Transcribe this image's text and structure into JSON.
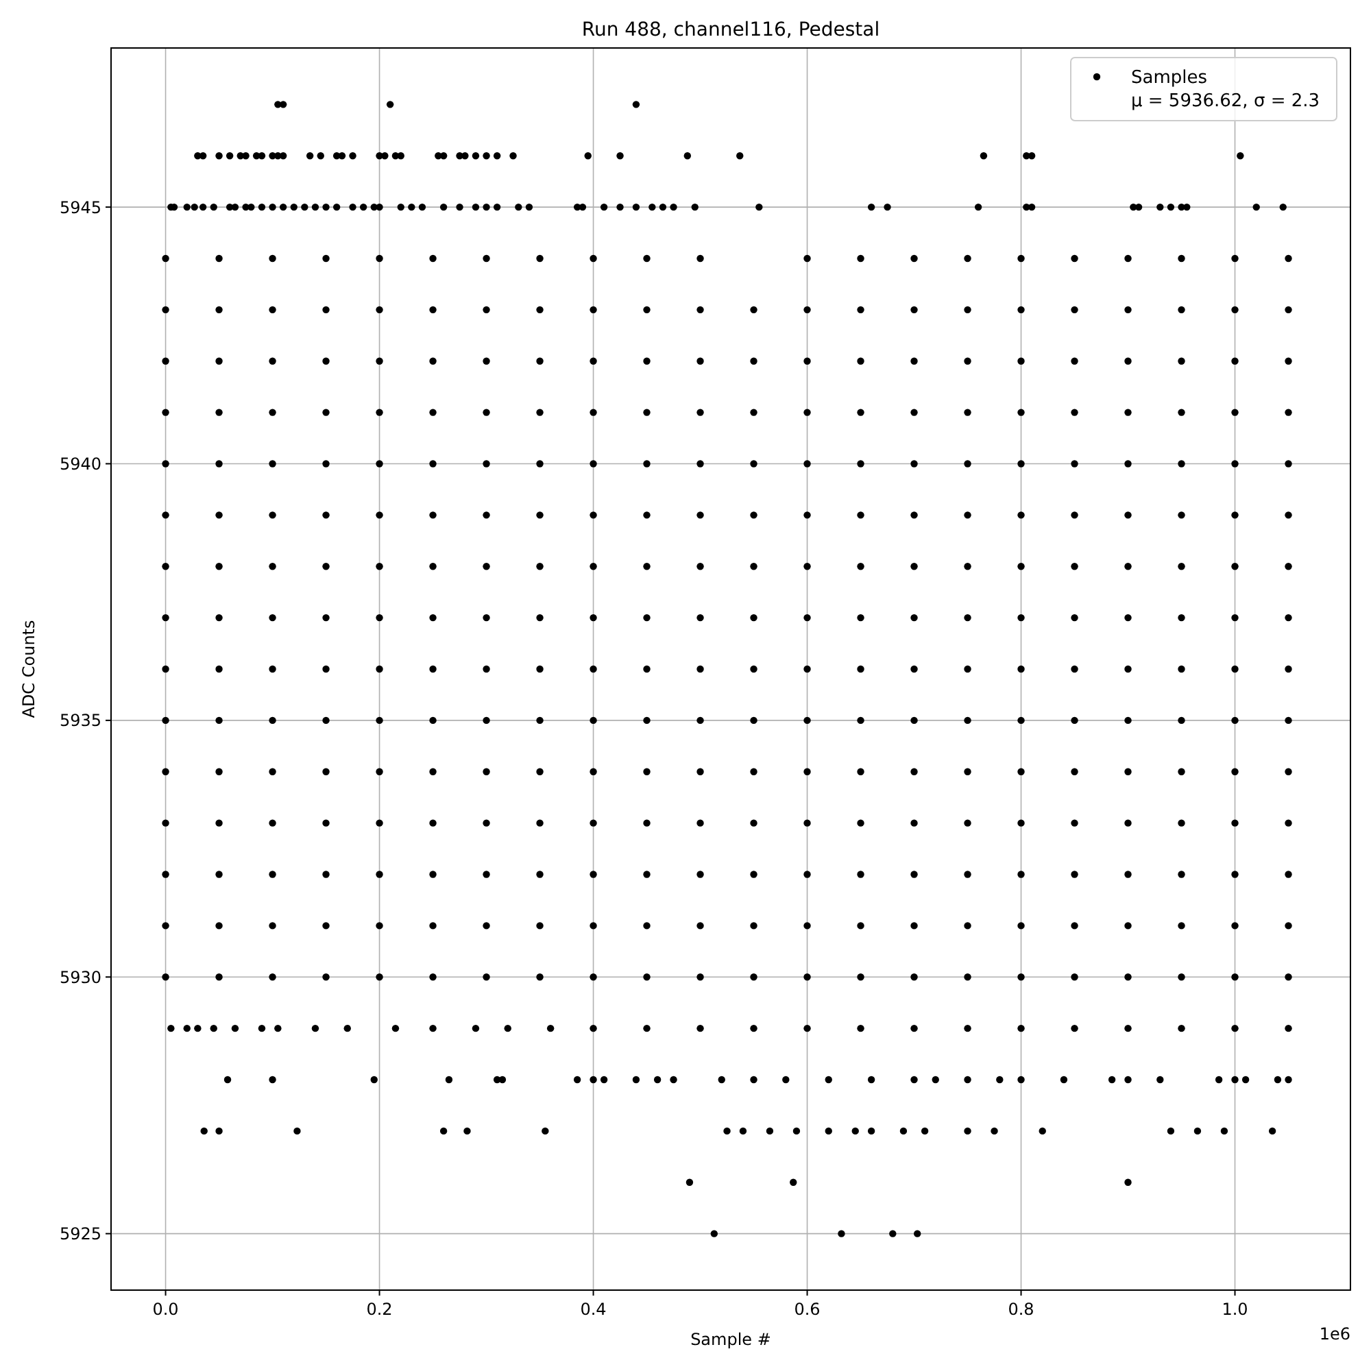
{
  "chart_data": {
    "type": "scatter",
    "title": "Run 488, channel116, Pedestal",
    "xlabel": "Sample #",
    "ylabel": "ADC Counts",
    "annotations": [
      "1e6"
    ],
    "x": [
      0,
      0.05,
      0.1,
      0.15,
      0.2,
      0.25,
      0.3,
      0.35,
      0.4,
      0.45,
      0.5,
      0.55,
      0.6,
      0.65,
      0.7,
      0.75,
      0.8,
      0.85,
      0.9,
      0.95,
      1.0,
      1.05
    ],
    "xlim": [
      -0.051,
      1.108
    ],
    "ylim": [
      5923.9,
      5948.1
    ],
    "xticks": [
      {
        "value": 0,
        "label": "0.0"
      },
      0.2,
      0.4,
      0.6,
      0.8,
      {
        "value": 1,
        "label": "1.0"
      }
    ],
    "yticks": [
      5925,
      5930,
      5935,
      5940,
      5945
    ],
    "grid": true,
    "legend": "top right",
    "marker": "circle",
    "series": [
      {
        "name": "Samples\nμ = 5936.62, σ = 2.3",
        "color": "#000000",
        "values": [
          5930,
          5930,
          5930,
          5930,
          5930,
          5930,
          5930,
          5930,
          5930,
          5930,
          5930,
          5930,
          5930,
          5930,
          5930,
          5930,
          5930,
          5930,
          5930,
          5930,
          5930,
          5930
        ]
      },
      {
        "color": "#000000",
        "values": [
          5931,
          5931,
          5931,
          5931,
          5931,
          5931,
          5931,
          5931,
          5931,
          5931,
          5931,
          5931,
          5931,
          5931,
          5931,
          5931,
          5931,
          5931,
          5931,
          5931,
          5931,
          5931
        ]
      },
      {
        "color": "#000000",
        "values": [
          5932,
          5932,
          5932,
          5932,
          5932,
          5932,
          5932,
          5932,
          5932,
          5932,
          5932,
          5932,
          5932,
          5932,
          5932,
          5932,
          5932,
          5932,
          5932,
          5932,
          5932,
          5932
        ]
      },
      {
        "color": "#000000",
        "values": [
          5933,
          5933,
          5933,
          5933,
          5933,
          5933,
          5933,
          5933,
          5933,
          5933,
          5933,
          5933,
          5933,
          5933,
          5933,
          5933,
          5933,
          5933,
          5933,
          5933,
          5933,
          5933
        ]
      },
      {
        "color": "#000000",
        "values": [
          5934,
          5934,
          5934,
          5934,
          5934,
          5934,
          5934,
          5934,
          5934,
          5934,
          5934,
          5934,
          5934,
          5934,
          5934,
          5934,
          5934,
          5934,
          5934,
          5934,
          5934,
          5934
        ]
      },
      {
        "color": "#000000",
        "values": [
          5935,
          5935,
          5935,
          5935,
          5935,
          5935,
          5935,
          5935,
          5935,
          5935,
          5935,
          5935,
          5935,
          5935,
          5935,
          5935,
          5935,
          5935,
          5935,
          5935,
          5935,
          5935
        ]
      },
      {
        "color": "#000000",
        "values": [
          5936,
          5936,
          5936,
          5936,
          5936,
          5936,
          5936,
          5936,
          5936,
          5936,
          5936,
          5936,
          5936,
          5936,
          5936,
          5936,
          5936,
          5936,
          5936,
          5936,
          5936,
          5936
        ]
      },
      {
        "color": "#000000",
        "values": [
          5937,
          5937,
          5937,
          5937,
          5937,
          5937,
          5937,
          5937,
          5937,
          5937,
          5937,
          5937,
          5937,
          5937,
          5937,
          5937,
          5937,
          5937,
          5937,
          5937,
          5937,
          5937
        ]
      },
      {
        "color": "#000000",
        "values": [
          5938,
          5938,
          5938,
          5938,
          5938,
          5938,
          5938,
          5938,
          5938,
          5938,
          5938,
          5938,
          5938,
          5938,
          5938,
          5938,
          5938,
          5938,
          5938,
          5938,
          5938,
          5938
        ]
      },
      {
        "color": "#000000",
        "values": [
          5939,
          5939,
          5939,
          5939,
          5939,
          5939,
          5939,
          5939,
          5939,
          5939,
          5939,
          5939,
          5939,
          5939,
          5939,
          5939,
          5939,
          5939,
          5939,
          5939,
          5939,
          5939
        ]
      },
      {
        "color": "#000000",
        "values": [
          5940,
          5940,
          5940,
          5940,
          5940,
          5940,
          5940,
          5940,
          5940,
          5940,
          5940,
          5940,
          5940,
          5940,
          5940,
          5940,
          5940,
          5940,
          5940,
          5940,
          5940,
          5940
        ]
      },
      {
        "color": "#000000",
        "values": [
          5941,
          5941,
          5941,
          5941,
          5941,
          5941,
          5941,
          5941,
          5941,
          5941,
          5941,
          5941,
          5941,
          5941,
          5941,
          5941,
          5941,
          5941,
          5941,
          5941,
          5941,
          5941
        ]
      },
      {
        "color": "#000000",
        "values": [
          5942,
          5942,
          5942,
          5942,
          5942,
          5942,
          5942,
          5942,
          5942,
          5942,
          5942,
          5942,
          5942,
          5942,
          5942,
          5942,
          5942,
          5942,
          5942,
          5942,
          5942,
          5942
        ]
      },
      {
        "color": "#000000",
        "values": [
          5943,
          5943,
          5943,
          5943,
          5943,
          5943,
          5943,
          5943,
          5943,
          5943,
          5943,
          5943,
          5943,
          5943,
          5943,
          5943,
          5943,
          5943,
          5943,
          5943,
          5943,
          5943
        ]
      },
      {
        "color": "#000000",
        "values": [
          5944,
          5944,
          5944,
          5944,
          5944,
          5944,
          5944,
          5944,
          5944,
          5944,
          5944,
          null,
          5944,
          5944,
          5944,
          5944,
          5944,
          5944,
          5944,
          5944,
          5944,
          5944
        ]
      },
      {
        "color": "#000000",
        "x": [
          0.005,
          0.02,
          0.03,
          0.045,
          0.065,
          0.09,
          0.105,
          0.14,
          0.17,
          0.215,
          0.25,
          0.29,
          0.32,
          0.36,
          0.4,
          0.45,
          0.5,
          0.55,
          0.6,
          0.65,
          0.7,
          0.75,
          0.8,
          0.85,
          0.9,
          0.95,
          1.0,
          1.05
        ],
        "values": [
          5929,
          5929,
          5929,
          5929,
          5929,
          5929,
          5929,
          5929,
          5929,
          5929,
          5929,
          5929,
          5929,
          5929,
          5929,
          5929,
          5929,
          5929,
          5929,
          5929,
          5929,
          5929,
          5929,
          5929,
          5929,
          5929,
          5929,
          5929
        ]
      },
      {
        "color": "#000000",
        "x": [
          0.058,
          0.1,
          0.195,
          0.265,
          0.31,
          0.315,
          0.385,
          0.4,
          0.41,
          0.44,
          0.46,
          0.475,
          0.52,
          0.55,
          0.58,
          0.62,
          0.66,
          0.7,
          0.72,
          0.75,
          0.78,
          0.8,
          0.84,
          0.885,
          0.9,
          0.93,
          0.985,
          1.0,
          1.01,
          1.04,
          1.05
        ],
        "values": [
          5928,
          5928,
          5928,
          5928,
          5928,
          5928,
          5928,
          5928,
          5928,
          5928,
          5928,
          5928,
          5928,
          5928,
          5928,
          5928,
          5928,
          5928,
          5928,
          5928,
          5928,
          5928,
          5928,
          5928,
          5928,
          5928,
          5928,
          5928,
          5928,
          5928,
          5928
        ]
      },
      {
        "color": "#000000",
        "x": [
          0.036,
          0.05,
          0.123,
          0.26,
          0.282,
          0.355,
          0.525,
          0.54,
          0.565,
          0.59,
          0.62,
          0.645,
          0.66,
          0.69,
          0.71,
          0.75,
          0.775,
          0.82,
          0.94,
          0.965,
          0.99,
          1.035
        ],
        "values": [
          5927,
          5927,
          5927,
          5927,
          5927,
          5927,
          5927,
          5927,
          5927,
          5927,
          5927,
          5927,
          5927,
          5927,
          5927,
          5927,
          5927,
          5927,
          5927,
          5927,
          5927,
          5927
        ]
      },
      {
        "color": "#000000",
        "x": [
          0.49,
          0.587,
          0.9
        ],
        "values": [
          5926,
          5926,
          5926
        ]
      },
      {
        "color": "#000000",
        "x": [
          0.513,
          0.632,
          0.68,
          0.703
        ],
        "values": [
          5925,
          5925,
          5925,
          5925
        ]
      },
      {
        "color": "#000000",
        "x": [
          0.005,
          0.008,
          0.02,
          0.027,
          0.035,
          0.045,
          0.06,
          0.065,
          0.075,
          0.08,
          0.09,
          0.1,
          0.11,
          0.12,
          0.13,
          0.14,
          0.15,
          0.16,
          0.175,
          0.185,
          0.195,
          0.2,
          0.22,
          0.23,
          0.24,
          0.26,
          0.275,
          0.29,
          0.3,
          0.31,
          0.33,
          0.34,
          0.385,
          0.39,
          0.41,
          0.425,
          0.44,
          0.455,
          0.465,
          0.475,
          0.495,
          0.555,
          0.66,
          0.675,
          0.76,
          0.805,
          0.81,
          0.905,
          0.91,
          0.93,
          0.94,
          0.95,
          0.955,
          1.02,
          1.045
        ],
        "values": [
          5945,
          5945,
          5945,
          5945,
          5945,
          5945,
          5945,
          5945,
          5945,
          5945,
          5945,
          5945,
          5945,
          5945,
          5945,
          5945,
          5945,
          5945,
          5945,
          5945,
          5945,
          5945,
          5945,
          5945,
          5945,
          5945,
          5945,
          5945,
          5945,
          5945,
          5945,
          5945,
          5945,
          5945,
          5945,
          5945,
          5945,
          5945,
          5945,
          5945,
          5945,
          5945,
          5945,
          5945,
          5945,
          5945,
          5945,
          5945,
          5945,
          5945,
          5945,
          5945,
          5945,
          5945,
          5945
        ]
      },
      {
        "color": "#000000",
        "x": [
          0.03,
          0.035,
          0.05,
          0.06,
          0.07,
          0.075,
          0.085,
          0.09,
          0.1,
          0.105,
          0.11,
          0.135,
          0.145,
          0.16,
          0.165,
          0.175,
          0.2,
          0.205,
          0.215,
          0.22,
          0.255,
          0.26,
          0.275,
          0.28,
          0.29,
          0.3,
          0.31,
          0.325,
          0.395,
          0.425,
          0.488,
          0.537,
          0.765,
          0.805,
          0.81,
          1.005
        ],
        "values": [
          5946,
          5946,
          5946,
          5946,
          5946,
          5946,
          5946,
          5946,
          5946,
          5946,
          5946,
          5946,
          5946,
          5946,
          5946,
          5946,
          5946,
          5946,
          5946,
          5946,
          5946,
          5946,
          5946,
          5946,
          5946,
          5946,
          5946,
          5946,
          5946,
          5946,
          5946,
          5946,
          5946,
          5946,
          5946,
          5946
        ]
      },
      {
        "color": "#000000",
        "x": [
          0.105,
          0.11,
          0.21,
          0.44
        ],
        "values": [
          5947,
          5947,
          5947,
          5947
        ]
      }
    ]
  }
}
